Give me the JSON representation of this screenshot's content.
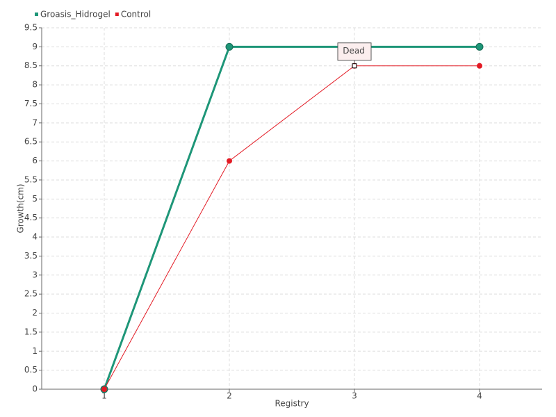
{
  "chart_data": {
    "type": "line",
    "categories": [
      "1",
      "2",
      "3",
      "4"
    ],
    "series": [
      {
        "name": "Groasis_Hidrogel",
        "color": "#1e9678",
        "values": [
          0,
          9,
          9,
          9
        ]
      },
      {
        "name": "Control",
        "color": "#e31a24",
        "values": [
          0,
          6,
          8.5,
          8.5
        ]
      }
    ],
    "x_label": "Registry",
    "y_label": "Growth(cm)",
    "ylim": [
      0,
      9.5
    ],
    "yticks": [
      0,
      0.5,
      1,
      1.5,
      2,
      2.5,
      3,
      3.5,
      4,
      4.5,
      5,
      5.5,
      6,
      6.5,
      7,
      7.5,
      8,
      8.5,
      9,
      9.5
    ],
    "grid": true,
    "legend": "top-left",
    "annotations": [
      {
        "text": "Dead"
      }
    ]
  }
}
